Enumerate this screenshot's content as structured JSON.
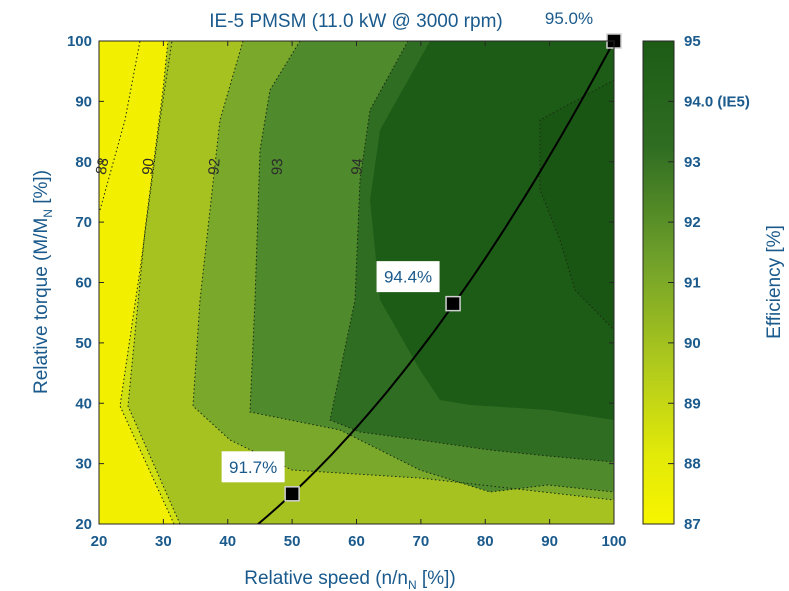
{
  "chart_data": {
    "type": "contour",
    "title": "IE-5 PMSM (11.0 kW @ 3000 rpm)",
    "xlabel": {
      "main": "Relative speed (n/n",
      "sub": "N",
      "end": " [%])"
    },
    "ylabel": {
      "main": "Relative torque (M/M",
      "sub": "N",
      "end": " [%])"
    },
    "xlim": [
      20,
      100
    ],
    "ylim": [
      20,
      100
    ],
    "xticks": [
      "20",
      "30",
      "40",
      "50",
      "60",
      "70",
      "80",
      "90",
      "100"
    ],
    "yticks": [
      "20",
      "30",
      "40",
      "50",
      "60",
      "70",
      "80",
      "90",
      "100"
    ],
    "colorbar": {
      "label": "Efficiency [%]",
      "range": [
        87,
        95
      ],
      "ticks": [
        "87",
        "88",
        "89",
        "90",
        "91",
        "92",
        "93",
        "94.0 (IE5)",
        "95"
      ],
      "color_low": "#f7f500",
      "color_high": "#1d5c16"
    },
    "contour_levels": [
      "88",
      "90",
      "92",
      "93",
      "94"
    ],
    "regions": [
      {
        "level": 87,
        "color": "#f2f000"
      },
      {
        "level": 88,
        "color": "#d0df12"
      },
      {
        "level": 90,
        "color": "#a6c220"
      },
      {
        "level": 92,
        "color": "#79a82a"
      },
      {
        "level": 93,
        "color": "#4f8a2c"
      },
      {
        "level": 94,
        "color": "#2f6d22"
      },
      {
        "level": 95,
        "color": "#1d5c16"
      }
    ],
    "operating_points": [
      {
        "speed": 50,
        "torque": 25,
        "efficiency_label": "91.7%"
      },
      {
        "speed": 75,
        "torque": 56.5,
        "efficiency_label": "94.4%"
      },
      {
        "speed": 100,
        "torque": 100,
        "efficiency_label": "95.0%"
      }
    ],
    "load_curve": {
      "type": "quadratic",
      "torque_at_100_speed": 100
    },
    "grid": false
  }
}
